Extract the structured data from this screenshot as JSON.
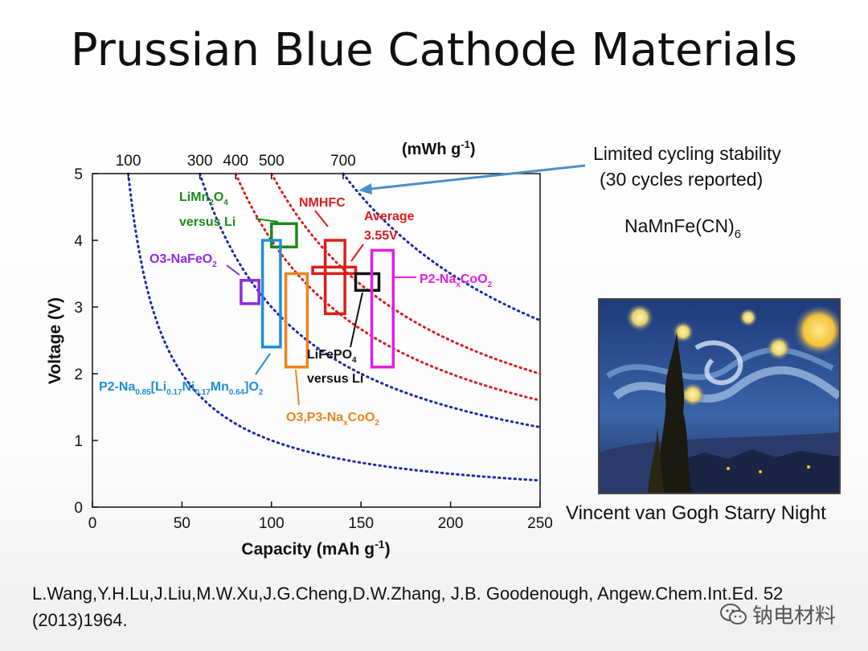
{
  "title": "Prussian Blue Cathode Materials",
  "callout": {
    "line1": "Limited cycling stability",
    "line2": "(30 cycles reported)"
  },
  "formula": {
    "text": "NaMnFe(CN)",
    "subscript": "6"
  },
  "image_caption": "Vincent van Gogh Starry Night",
  "citation": "L.Wang,Y.H.Lu,J.Liu,M.W.Xu,J.G.Cheng,D.W.Zhang, J.B. Goodenough, Angew.Chem.Int.Ed. 52 (2013)1964.",
  "watermark": {
    "text": "钠电材料",
    "icon": "wechat-icon"
  },
  "colors": {
    "blue": "#1f8fd6",
    "purple": "#8a2be2",
    "green": "#1a8a1a",
    "orange": "#e8861c",
    "red": "#e01b1b",
    "black": "#111111",
    "magenta": "#e020e0",
    "arrow": "#4a90c8",
    "energy_blue": "#1c2aa6",
    "energy_red": "#d42020"
  },
  "chart_data": {
    "type": "box-annotated",
    "xlabel": "Capacity (mAh g-1)",
    "ylabel": "Voltage (V)",
    "top_axis_label": "(mWh g-1)",
    "xlim": [
      0,
      250
    ],
    "ylim": [
      0,
      5
    ],
    "x_ticks": [
      0,
      50,
      100,
      150,
      200,
      250
    ],
    "y_ticks": [
      0,
      1,
      2,
      3,
      4,
      5
    ],
    "energy_curves": [
      {
        "energy": 100,
        "color": "blue"
      },
      {
        "energy": 300,
        "color": "blue"
      },
      {
        "energy": 400,
        "color": "red"
      },
      {
        "energy": 500,
        "color": "red"
      },
      {
        "energy": 700,
        "color": "blue"
      }
    ],
    "top_axis_labels": [
      "100",
      "300",
      "400",
      "500",
      "700"
    ],
    "materials": [
      {
        "name": "LiMn2O4 versus Li",
        "color": "green",
        "capacity": [
          100,
          114
        ],
        "voltage": [
          3.9,
          4.25
        ]
      },
      {
        "name": "P2-Na0.85[Li0.17Ni0.17Mn0.64]O2",
        "color": "blue",
        "capacity": [
          95,
          105
        ],
        "voltage": [
          2.4,
          4.0
        ]
      },
      {
        "name": "O3-NaFeO2",
        "color": "purple",
        "capacity": [
          83,
          93
        ],
        "voltage": [
          3.05,
          3.4
        ]
      },
      {
        "name": "O3,P3-NaxCoO2",
        "color": "orange",
        "capacity": [
          108,
          120
        ],
        "voltage": [
          2.1,
          3.5
        ]
      },
      {
        "name": "NMHFC",
        "color": "red",
        "capacity": [
          130,
          141
        ],
        "voltage": [
          2.9,
          4.0
        ],
        "average": 3.55,
        "average_range": [
          123,
          147
        ]
      },
      {
        "name": "LiFePO4 versus Li",
        "color": "black",
        "capacity": [
          147,
          160
        ],
        "voltage": [
          3.25,
          3.5
        ]
      },
      {
        "name": "P2-NaxCoO2",
        "color": "magenta",
        "capacity": [
          156,
          168
        ],
        "voltage": [
          2.1,
          3.85
        ]
      }
    ],
    "annotations": [
      {
        "key": "LiMn2O4",
        "color": "green"
      },
      {
        "key": "versus_li_1",
        "text": "versus Li",
        "color": "green"
      },
      {
        "key": "NaFeO2",
        "color": "purple"
      },
      {
        "key": "P2mixed",
        "color": "blue"
      },
      {
        "key": "O3P3",
        "color": "orange"
      },
      {
        "key": "NMHFC",
        "text": "NMHFC",
        "color": "red"
      },
      {
        "key": "Average",
        "text": "Average",
        "color": "red"
      },
      {
        "key": "Average_v",
        "text": "3.55V",
        "color": "red"
      },
      {
        "key": "LiFePO4",
        "color": "black"
      },
      {
        "key": "versus_li_2",
        "text": "versus Li",
        "color": "black"
      },
      {
        "key": "P2NaxCoO2",
        "color": "magenta"
      }
    ]
  }
}
